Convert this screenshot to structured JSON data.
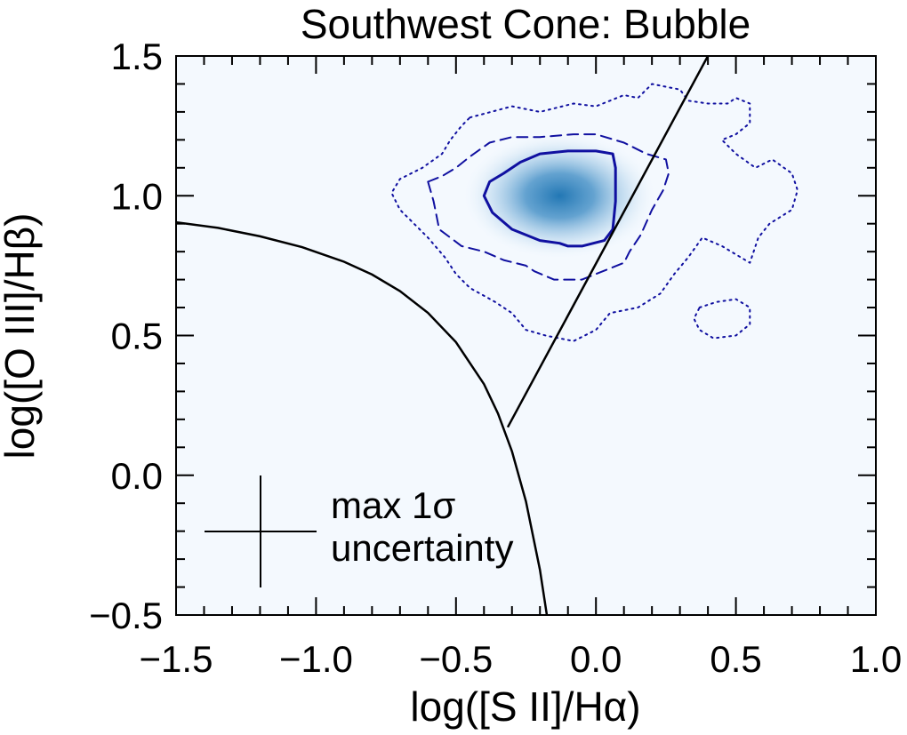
{
  "chart_data": {
    "type": "scatter",
    "title": "Southwest Cone: Bubble",
    "xlabel": "log([S II]/Hα)",
    "ylabel": "log([O III]/Hβ)",
    "xlim": [
      -1.5,
      1.0
    ],
    "ylim": [
      -0.5,
      1.5
    ],
    "x_ticks": [
      "−1.5",
      "−1.0",
      "−0.5",
      "0.0",
      "0.5",
      "1.0"
    ],
    "y_ticks": [
      "−0.5",
      "0.0",
      "0.5",
      "1.0",
      "1.5"
    ],
    "grid": false,
    "density_peak": {
      "x": -0.13,
      "y": 1.0
    },
    "series": [
      {
        "style": "solid",
        "color": "#1010a0",
        "points": [
          [
            -0.33,
            1.08
          ],
          [
            -0.27,
            1.12
          ],
          [
            -0.2,
            1.15
          ],
          [
            -0.1,
            1.16
          ],
          [
            0.0,
            1.16
          ],
          [
            0.06,
            1.15
          ],
          [
            0.07,
            1.1
          ],
          [
            0.07,
            0.98
          ],
          [
            0.06,
            0.88
          ],
          [
            0.03,
            0.84
          ],
          [
            -0.05,
            0.82
          ],
          [
            -0.1,
            0.82
          ],
          [
            -0.13,
            0.83
          ],
          [
            -0.2,
            0.84
          ],
          [
            -0.3,
            0.88
          ],
          [
            -0.37,
            0.94
          ],
          [
            -0.4,
            1.0
          ],
          [
            -0.38,
            1.05
          ],
          [
            -0.33,
            1.08
          ]
        ]
      },
      {
        "style": "dashed",
        "color": "#1010a0",
        "points": [
          [
            -0.6,
            1.05
          ],
          [
            -0.55,
            1.07
          ],
          [
            -0.5,
            1.1
          ],
          [
            -0.45,
            1.14
          ],
          [
            -0.38,
            1.19
          ],
          [
            -0.3,
            1.21
          ],
          [
            -0.2,
            1.21
          ],
          [
            -0.08,
            1.22
          ],
          [
            0.0,
            1.22
          ],
          [
            0.1,
            1.19
          ],
          [
            0.18,
            1.15
          ],
          [
            0.25,
            1.13
          ],
          [
            0.26,
            1.08
          ],
          [
            0.24,
            1.02
          ],
          [
            0.2,
            0.95
          ],
          [
            0.16,
            0.86
          ],
          [
            0.12,
            0.8
          ],
          [
            0.1,
            0.76
          ],
          [
            0.0,
            0.72
          ],
          [
            -0.05,
            0.7
          ],
          [
            -0.15,
            0.7
          ],
          [
            -0.22,
            0.73
          ],
          [
            -0.25,
            0.75
          ],
          [
            -0.33,
            0.77
          ],
          [
            -0.4,
            0.8
          ],
          [
            -0.48,
            0.82
          ],
          [
            -0.52,
            0.85
          ],
          [
            -0.56,
            0.88
          ],
          [
            -0.57,
            0.93
          ],
          [
            -0.58,
            0.98
          ],
          [
            -0.6,
            1.05
          ]
        ]
      },
      {
        "style": "dotted",
        "color": "#1010a0",
        "points": [
          [
            -0.45,
            1.28
          ],
          [
            -0.3,
            1.32
          ],
          [
            -0.2,
            1.3
          ],
          [
            -0.08,
            1.33
          ],
          [
            0.0,
            1.32
          ],
          [
            0.1,
            1.36
          ],
          [
            0.15,
            1.35
          ],
          [
            0.2,
            1.4
          ],
          [
            0.3,
            1.38
          ],
          [
            0.33,
            1.34
          ],
          [
            0.4,
            1.33
          ],
          [
            0.47,
            1.33
          ],
          [
            0.5,
            1.35
          ],
          [
            0.55,
            1.33
          ],
          [
            0.55,
            1.26
          ],
          [
            0.5,
            1.22
          ],
          [
            0.45,
            1.2
          ],
          [
            0.5,
            1.15
          ],
          [
            0.57,
            1.1
          ],
          [
            0.63,
            1.13
          ],
          [
            0.7,
            1.08
          ],
          [
            0.72,
            1.02
          ],
          [
            0.7,
            0.95
          ],
          [
            0.62,
            0.9
          ],
          [
            0.58,
            0.85
          ],
          [
            0.55,
            0.76
          ],
          [
            0.45,
            0.82
          ],
          [
            0.38,
            0.85
          ],
          [
            0.33,
            0.78
          ],
          [
            0.28,
            0.72
          ],
          [
            0.23,
            0.65
          ],
          [
            0.15,
            0.6
          ],
          [
            0.05,
            0.58
          ],
          [
            0.0,
            0.52
          ],
          [
            -0.08,
            0.48
          ],
          [
            -0.18,
            0.5
          ],
          [
            -0.25,
            0.52
          ],
          [
            -0.3,
            0.58
          ],
          [
            -0.36,
            0.62
          ],
          [
            -0.45,
            0.67
          ],
          [
            -0.5,
            0.72
          ],
          [
            -0.54,
            0.78
          ],
          [
            -0.6,
            0.85
          ],
          [
            -0.65,
            0.9
          ],
          [
            -0.7,
            0.95
          ],
          [
            -0.73,
            1.01
          ],
          [
            -0.7,
            1.06
          ],
          [
            -0.62,
            1.1
          ],
          [
            -0.55,
            1.15
          ],
          [
            -0.52,
            1.2
          ],
          [
            -0.48,
            1.25
          ],
          [
            -0.45,
            1.28
          ]
        ]
      },
      {
        "style": "dotted",
        "color": "#1010a0",
        "points": [
          [
            0.37,
            0.6
          ],
          [
            0.43,
            0.62
          ],
          [
            0.5,
            0.63
          ],
          [
            0.55,
            0.6
          ],
          [
            0.55,
            0.54
          ],
          [
            0.5,
            0.5
          ],
          [
            0.42,
            0.49
          ],
          [
            0.37,
            0.52
          ],
          [
            0.35,
            0.56
          ],
          [
            0.37,
            0.6
          ]
        ]
      }
    ],
    "reference_lines": [
      {
        "style": "solid",
        "color": "#000000",
        "points": [
          [
            -1.5,
            0.905
          ],
          [
            -1.35,
            0.885
          ],
          [
            -1.2,
            0.855
          ],
          [
            -1.05,
            0.816
          ],
          [
            -0.9,
            0.764
          ],
          [
            -0.8,
            0.718
          ],
          [
            -0.7,
            0.659
          ],
          [
            -0.6,
            0.581
          ],
          [
            -0.5,
            0.476
          ],
          [
            -0.4,
            0.326
          ],
          [
            -0.35,
            0.221
          ],
          [
            -0.3,
            0.085
          ],
          [
            -0.25,
            -0.094
          ],
          [
            -0.2,
            -0.338
          ],
          [
            -0.16,
            -0.6
          ]
        ]
      },
      {
        "style": "solid",
        "color": "#000000",
        "points": [
          [
            -0.315,
            0.172
          ],
          [
            0.4,
            1.5
          ]
        ]
      }
    ],
    "legend_entries": [
      "max 1σ",
      "uncertainty"
    ]
  }
}
